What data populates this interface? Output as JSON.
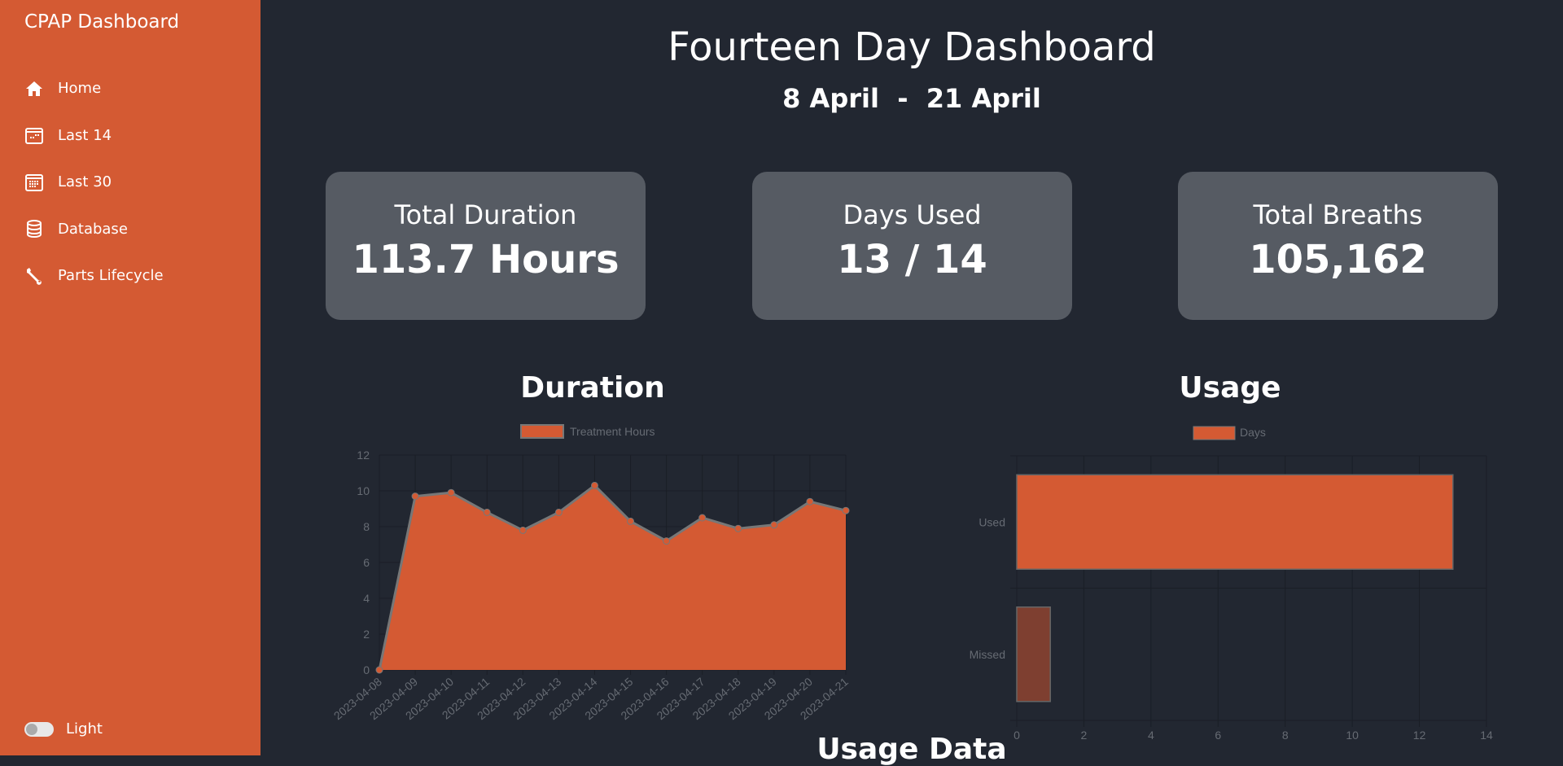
{
  "sidebar": {
    "brand": "CPAP Dashboard",
    "items": [
      {
        "label": "Home",
        "icon": "home-icon"
      },
      {
        "label": "Last 14",
        "icon": "calendar-week-icon"
      },
      {
        "label": "Last 30",
        "icon": "calendar-month-icon"
      },
      {
        "label": "Database",
        "icon": "database-icon"
      },
      {
        "label": "Parts Lifecycle",
        "icon": "wrench-icon"
      }
    ],
    "theme_toggle": {
      "label": "Light",
      "on": false
    }
  },
  "header": {
    "title": "Fourteen Day Dashboard",
    "range": "8 April  -  21 April"
  },
  "cards": [
    {
      "label": "Total Duration",
      "value": "113.7 Hours"
    },
    {
      "label": "Days Used",
      "value": "13 / 14"
    },
    {
      "label": "Total Breaths",
      "value": "105,162"
    }
  ],
  "colors": {
    "accent": "#d45a33",
    "background": "#222731",
    "card": "#565b63",
    "missed": "#7e3f30"
  },
  "sections": {
    "usage_data": "Usage Data"
  },
  "chart_data": [
    {
      "type": "area",
      "title": "Duration",
      "legend": "Treatment Hours",
      "legend_position": "top",
      "categories": [
        "2023-04-08",
        "2023-04-09",
        "2023-04-10",
        "2023-04-11",
        "2023-04-12",
        "2023-04-13",
        "2023-04-14",
        "2023-04-15",
        "2023-04-16",
        "2023-04-17",
        "2023-04-18",
        "2023-04-19",
        "2023-04-20",
        "2023-04-21"
      ],
      "values": [
        0,
        9.7,
        9.9,
        8.8,
        7.8,
        8.8,
        10.3,
        8.3,
        7.2,
        8.5,
        7.9,
        8.1,
        9.4,
        8.9
      ],
      "ylim": [
        0,
        12
      ],
      "yticks": [
        "0",
        "2",
        "4",
        "6",
        "8",
        "10",
        "12"
      ],
      "grid": true
    },
    {
      "type": "bar",
      "orientation": "horizontal",
      "title": "Usage",
      "legend": "Days",
      "legend_position": "top",
      "categories": [
        "Used",
        "Missed"
      ],
      "values": [
        13,
        1
      ],
      "xlim": [
        0,
        14
      ],
      "xticks": [
        "0",
        "2",
        "4",
        "6",
        "8",
        "10",
        "12",
        "14"
      ],
      "grid": true
    }
  ]
}
